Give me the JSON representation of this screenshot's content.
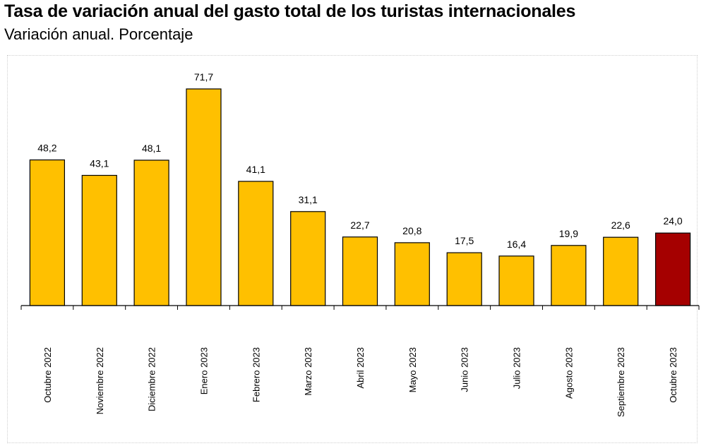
{
  "header": {
    "title": "Tasa de variación anual del gasto total de los turistas internacionales",
    "subtitle": "Variación anual. Porcentaje"
  },
  "chart_data": {
    "type": "bar",
    "title": "Tasa de variación anual del gasto total de los turistas internacionales",
    "subtitle": "Variación anual. Porcentaje",
    "categories": [
      "Octubre 2022",
      "Noviembre 2022",
      "Diciembre 2022",
      "Enero 2023",
      "Febrero 2023",
      "Marzo 2023",
      "Abril 2023",
      "Mayo 2023",
      "Junio 2023",
      "Julio 2023",
      "Agosto 2023",
      "Septiembre 2023",
      "Octubre 2023"
    ],
    "values": [
      48.2,
      43.1,
      48.1,
      71.7,
      41.1,
      31.1,
      22.7,
      20.8,
      17.5,
      16.4,
      19.9,
      22.6,
      24.0
    ],
    "labels": [
      "48,2",
      "43,1",
      "48,1",
      "71,7",
      "41,1",
      "31,1",
      "22,7",
      "20,8",
      "17,5",
      "16,4",
      "19,9",
      "22,6",
      "24,0"
    ],
    "colors": {
      "default": "#FFC000",
      "highlight": "#A50000",
      "highlight_index": 12
    },
    "xlabel": "",
    "ylabel": "",
    "ylim": [
      0,
      72
    ],
    "grid": false,
    "legend": "none"
  }
}
